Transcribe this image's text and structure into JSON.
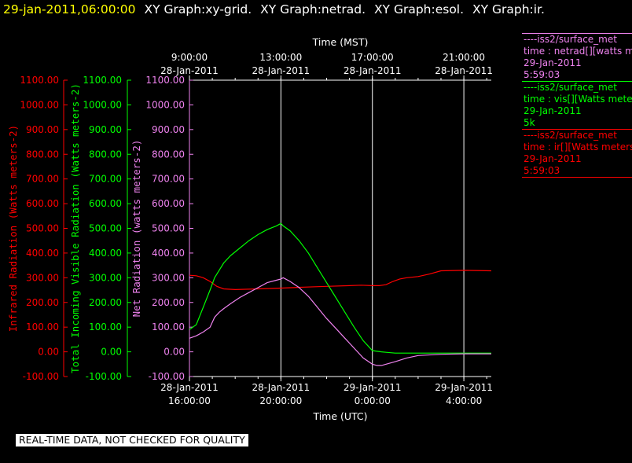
{
  "header": {
    "timestamp": "29-jan-2011,06:00:00",
    "graphs": [
      "XY Graph:xy-grid.",
      "XY Graph:netrad.",
      "XY Graph:esol.",
      "XY Graph:ir."
    ]
  },
  "colors": {
    "background": "#000000",
    "ir": "#ff0000",
    "vis": "#00ff00",
    "netrad": "#ee82ee",
    "grid": "#ffffff",
    "timestamp": "#ffff00"
  },
  "legend": [
    {
      "source": "----iss2/surface_met",
      "label": "time : netrad[][watts me",
      "date": "29-Jan-2011",
      "time": "5:59:03",
      "color": "#ee82ee"
    },
    {
      "source": "----iss2/surface_met",
      "label": "time : vis[][Watts mete",
      "date": "29-Jan-2011",
      "time": "5k",
      "color": "#00ff00"
    },
    {
      "source": "----iss2/surface_met",
      "label": "time : ir[][Watts meters",
      "date": "29-Jan-2011",
      "time": "5:59:03",
      "color": "#ff0000"
    }
  ],
  "footer": "REAL-TIME DATA, NOT CHECKED FOR QUALITY",
  "chart_data": {
    "type": "line",
    "title_top": "Time (MST)",
    "xlabel": "Time (UTC)",
    "x_unit": "hours UTC since 28-Jan-2011 00:00",
    "xlim": [
      16,
      29.2
    ],
    "bottom_ticks": [
      {
        "x": 16,
        "date": "28-Jan-2011",
        "time": "16:00:00"
      },
      {
        "x": 20,
        "date": "28-Jan-2011",
        "time": "20:00:00"
      },
      {
        "x": 24,
        "date": "29-Jan-2011",
        "time": "0:00:00"
      },
      {
        "x": 28,
        "date": "29-Jan-2011",
        "time": "4:00:00"
      }
    ],
    "top_ticks": [
      {
        "x": 16,
        "time": "9:00:00",
        "date": "28-Jan-2011"
      },
      {
        "x": 20,
        "time": "13:00:00",
        "date": "28-Jan-2011"
      },
      {
        "x": 24,
        "time": "17:00:00",
        "date": "28-Jan-2011"
      },
      {
        "x": 28,
        "time": "21:00:00",
        "date": "28-Jan-2011"
      }
    ],
    "y_axes": [
      {
        "key": "ir",
        "label": "Infrared Radiation (Watts meters-2)",
        "ylim": [
          -100,
          1100
        ],
        "color": "#ff0000"
      },
      {
        "key": "vis",
        "label": "Total Incoming Visible Radiation (Watts meters-2)",
        "ylim": [
          -100,
          1100
        ],
        "color": "#00ff00"
      },
      {
        "key": "netrad",
        "label": "Net Radiation (watts meters-2)",
        "ylim": [
          -100,
          1100
        ],
        "color": "#ee82ee"
      }
    ],
    "y_ticks": [
      "-100.00",
      "0.00",
      "100.00",
      "200.00",
      "300.00",
      "400.00",
      "500.00",
      "600.00",
      "700.00",
      "800.00",
      "900.00",
      "1000.00",
      "1100.00"
    ],
    "grid": true,
    "series": [
      {
        "key": "ir",
        "color": "#ff0000",
        "x": [
          16.0,
          16.3,
          16.6,
          16.9,
          17.2,
          17.5,
          18,
          19,
          20,
          21,
          22,
          23,
          23.5,
          24,
          24.3,
          24.6,
          24.9,
          25.2,
          25.5,
          26,
          26.5,
          27,
          28,
          29.2
        ],
        "y": [
          310,
          308,
          300,
          285,
          265,
          255,
          252,
          255,
          258,
          262,
          265,
          268,
          270,
          268,
          268,
          272,
          285,
          295,
          300,
          305,
          315,
          328,
          330,
          328
        ]
      },
      {
        "key": "vis",
        "color": "#00ff00",
        "x": [
          16.0,
          16.3,
          16.6,
          16.9,
          17.1,
          17.3,
          17.5,
          17.8,
          18.2,
          18.6,
          19,
          19.4,
          19.8,
          20,
          20.1,
          20.4,
          20.8,
          21.2,
          21.6,
          22,
          22.4,
          22.8,
          23.2,
          23.6,
          24,
          24.4,
          24.6,
          25,
          26,
          27,
          28,
          29.2
        ],
        "y": [
          90,
          110,
          180,
          250,
          300,
          330,
          360,
          390,
          420,
          450,
          475,
          495,
          510,
          520,
          510,
          490,
          450,
          400,
          340,
          280,
          220,
          160,
          100,
          45,
          5,
          0,
          -2,
          -5,
          -5,
          -5,
          -5,
          -5
        ]
      },
      {
        "key": "netrad",
        "color": "#ee82ee",
        "x": [
          16.0,
          16.3,
          16.6,
          16.9,
          17.1,
          17.3,
          17.5,
          17.8,
          18.2,
          18.6,
          19,
          19.4,
          19.8,
          20,
          20.1,
          20.4,
          20.8,
          21.2,
          21.6,
          22,
          22.4,
          22.8,
          23.2,
          23.6,
          24,
          24.2,
          24.4,
          24.6,
          25,
          25.5,
          26,
          27,
          28,
          29.2
        ],
        "y": [
          55,
          65,
          80,
          100,
          140,
          160,
          175,
          195,
          220,
          240,
          260,
          280,
          290,
          295,
          300,
          285,
          260,
          225,
          180,
          135,
          95,
          55,
          15,
          -25,
          -50,
          -55,
          -55,
          -50,
          -40,
          -25,
          -15,
          -10,
          -8,
          -8
        ]
      }
    ]
  }
}
